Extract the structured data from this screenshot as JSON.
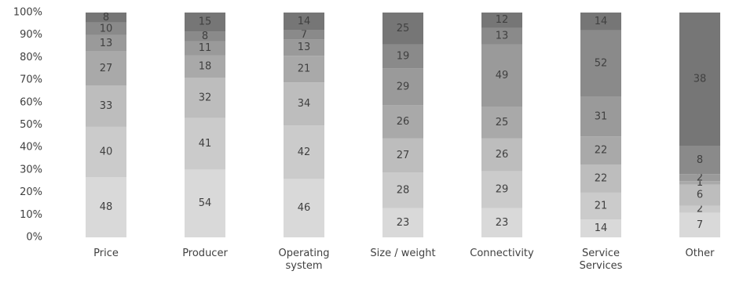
{
  "chart_data": {
    "type": "bar",
    "stacked": "percent",
    "categories": [
      "Price",
      "Producer",
      "Operating\nsystem",
      "Size / weight",
      "Connectivity",
      "Service\nServices",
      "Other"
    ],
    "series": [
      {
        "color": "#d9d9d9",
        "values": [
          48,
          54,
          46,
          23,
          23,
          14,
          7
        ]
      },
      {
        "color": "#cbcbcb",
        "values": [
          40,
          41,
          42,
          28,
          29,
          21,
          2
        ]
      },
      {
        "color": "#bdbdbd",
        "values": [
          33,
          32,
          34,
          27,
          26,
          22,
          6
        ]
      },
      {
        "color": "#a9a9a9",
        "values": [
          27,
          18,
          21,
          26,
          25,
          22,
          1
        ]
      },
      {
        "color": "#9a9a9a",
        "values": [
          13,
          11,
          13,
          29,
          49,
          31,
          2
        ]
      },
      {
        "color": "#8a8a8a",
        "values": [
          10,
          8,
          7,
          19,
          13,
          52,
          8
        ]
      },
      {
        "color": "#767676",
        "values": [
          8,
          15,
          14,
          25,
          12,
          14,
          38
        ]
      }
    ],
    "ylim": [
      0,
      100
    ],
    "yticks": [
      {
        "value": 0,
        "label": "0%"
      },
      {
        "value": 10,
        "label": "10%"
      },
      {
        "value": 20,
        "label": "20%"
      },
      {
        "value": 30,
        "label": "30%"
      },
      {
        "value": 40,
        "label": "40%"
      },
      {
        "value": 50,
        "label": "50%"
      },
      {
        "value": 60,
        "label": "60%"
      },
      {
        "value": 70,
        "label": "70%"
      },
      {
        "value": 80,
        "label": "80%"
      },
      {
        "value": 90,
        "label": "90%"
      },
      {
        "value": 100,
        "label": "100%"
      }
    ],
    "grid": false
  }
}
